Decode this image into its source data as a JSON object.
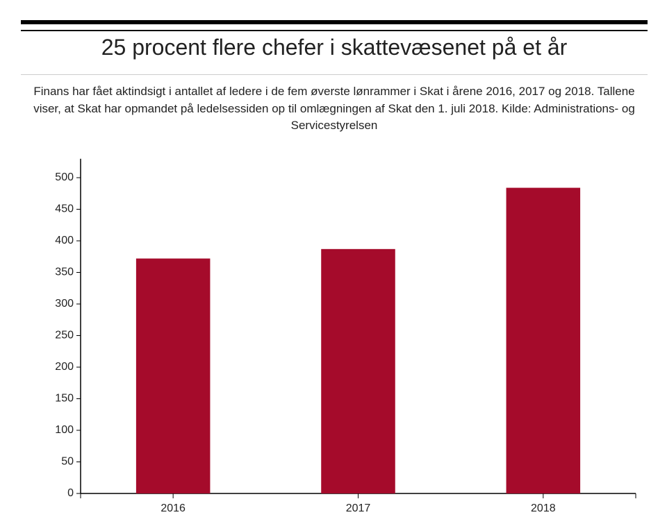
{
  "chart_data": {
    "type": "bar",
    "title": "25 procent flere chefer i skattevæsenet på et år",
    "subtitle": "Finans har fået aktindsigt i antallet af ledere i de fem øverste lønrammer i Skat i årene 2016, 2017 og 2018. Tallene viser, at Skat har opmandet på ledelsessiden op til omlægningen af Skat den 1. juli 2018. Kilde: Administrations- og Servicestyrelsen",
    "categories": [
      "2016",
      "2017",
      "2018"
    ],
    "values": [
      372,
      387,
      484
    ],
    "color": "#a50b2b",
    "ylim": [
      0,
      530
    ],
    "yticks": [
      0,
      50,
      100,
      150,
      200,
      250,
      300,
      350,
      400,
      450,
      500
    ],
    "grid": false
  }
}
